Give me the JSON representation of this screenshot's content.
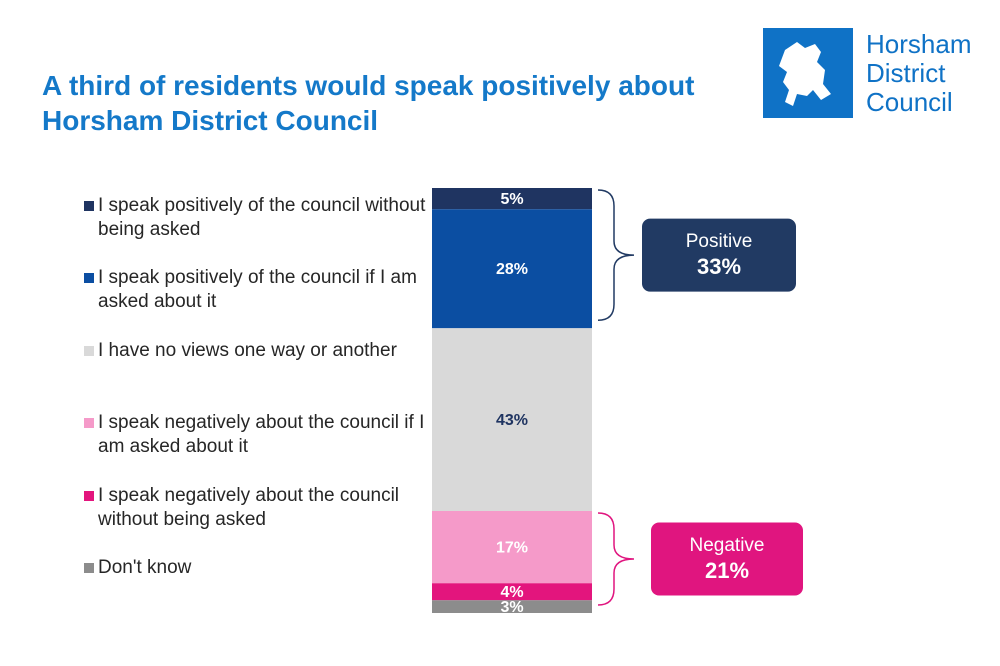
{
  "chart_data": {
    "type": "stacked-bar",
    "title": "A third of residents would speak positively about Horsham District Council",
    "series": [
      {
        "name": "I speak positively of the council without being asked",
        "color": "#1f3461",
        "values": [
          5
        ],
        "value_labels": [
          "5%"
        ],
        "label_color": "#ffffff"
      },
      {
        "name": "I speak positively of the council if I am asked about it",
        "color": "#0b4ea2",
        "values": [
          28
        ],
        "value_labels": [
          "28%"
        ],
        "label_color": "#ffffff"
      },
      {
        "name": "I have no views one way or another",
        "color": "#d9d9d9",
        "values": [
          43
        ],
        "value_labels": [
          "43%"
        ],
        "label_color": "#1f3461"
      },
      {
        "name": "I speak negatively about the council if I am asked about it",
        "color": "#f59ac9",
        "values": [
          17
        ],
        "value_labels": [
          "17%"
        ],
        "label_color": "#ffffff"
      },
      {
        "name": "I speak negatively about the council without being asked",
        "color": "#e3157d",
        "values": [
          4
        ],
        "value_labels": [
          "4%"
        ],
        "label_color": "#ffffff"
      },
      {
        "name": "Don't know",
        "color": "#8c8c8c",
        "values": [
          3
        ],
        "value_labels": [
          "3%"
        ],
        "label_color": "#ffffff"
      }
    ],
    "annotations": [
      {
        "label": "Positive",
        "value": 33,
        "value_label": "33%",
        "color": "#213a63"
      },
      {
        "label": "Negative",
        "value": 21,
        "value_label": "21%",
        "color": "#e0157f"
      }
    ]
  },
  "logo": {
    "lines": [
      "Horsham",
      "District",
      "Council"
    ]
  }
}
